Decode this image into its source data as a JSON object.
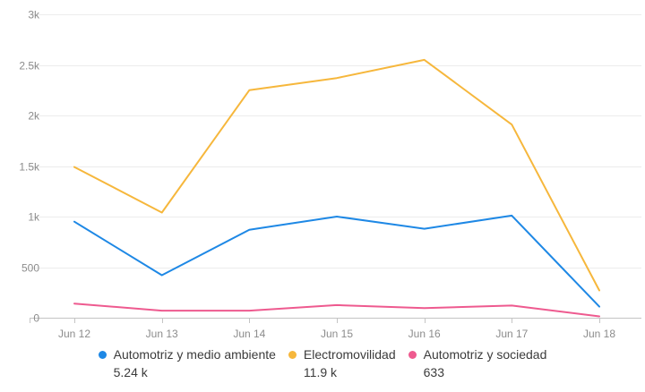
{
  "chart_data": {
    "type": "line",
    "title": "",
    "xlabel": "",
    "ylabel": "",
    "categories": [
      "Jun 12",
      "Jun 13",
      "Jun 14",
      "Jun 15",
      "Jun 16",
      "Jun 17",
      "Jun 18"
    ],
    "series": [
      {
        "name": "Automotriz y medio ambiente",
        "total_label": "5.24 k",
        "color": "#1e88e5",
        "values": [
          950,
          420,
          870,
          1000,
          880,
          1010,
          110
        ]
      },
      {
        "name": "Electromovilidad",
        "total_label": "11.9 k",
        "color": "#f6b73c",
        "values": [
          1490,
          1040,
          2250,
          2370,
          2550,
          1910,
          270
        ]
      },
      {
        "name": "Automotriz y sociedad",
        "total_label": "633",
        "color": "#ee5a8f",
        "values": [
          140,
          70,
          70,
          125,
          95,
          120,
          13
        ]
      }
    ],
    "ylim": [
      0,
      3000
    ],
    "yticks": [
      {
        "value": 0,
        "label": "0"
      },
      {
        "value": 500,
        "label": "500"
      },
      {
        "value": 1000,
        "label": "1k"
      },
      {
        "value": 1500,
        "label": "1.5k"
      },
      {
        "value": 2000,
        "label": "2k"
      },
      {
        "value": 2500,
        "label": "2.5k"
      },
      {
        "value": 3000,
        "label": "3k"
      }
    ],
    "grid": true,
    "legend_position": "bottom"
  }
}
